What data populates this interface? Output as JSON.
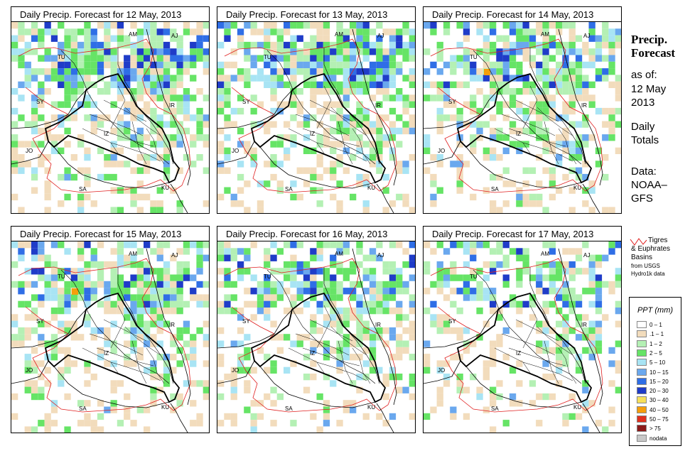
{
  "panels": [
    {
      "title": "Daily Precip. Forecast for  12 May, 2013",
      "seed": 12,
      "density": 0.55
    },
    {
      "title": "Daily Precip. Forecast for  13 May, 2013",
      "seed": 13,
      "density": 0.5
    },
    {
      "title": "Daily Precip. Forecast for  14 May, 2013",
      "seed": 14,
      "density": 0.42
    },
    {
      "title": "Daily Precip. Forecast for  15 May, 2013",
      "seed": 15,
      "density": 0.38
    },
    {
      "title": "Daily Precip. Forecast for  16 May, 2013",
      "seed": 16,
      "density": 0.36
    },
    {
      "title": "Daily Precip. Forecast for  17 May, 2013",
      "seed": 17,
      "density": 0.26
    }
  ],
  "map_labels": [
    "AM",
    "AJ",
    "TU",
    "SY",
    "IR",
    "JO",
    "SA",
    "KU",
    "IZ"
  ],
  "sidebar": {
    "title_line1": "Precip.",
    "title_line2": "Forecast",
    "as_of": "as of:",
    "date_line1": "12 May",
    "date_line2": "2013",
    "daily_line1": "Daily",
    "daily_line2": "Totals",
    "data_line1": "Data:",
    "data_line2": "NOAA–",
    "data_line3": "GFS"
  },
  "basin_legend": {
    "line1": "Tigres",
    "line2": "& Euphrates",
    "line3": "Basins",
    "line4": "from USGS",
    "line5": "Hydro1k data",
    "color": "#e02020"
  },
  "ppt_legend": {
    "title": "PPT (mm)",
    "items": [
      {
        "label": "0 – 1",
        "color": "#ffffff"
      },
      {
        "label": ".1 – 1",
        "color": "#f2dcbc"
      },
      {
        "label": "1 – 2",
        "color": "#b4f0b4"
      },
      {
        "label": "2 – 5",
        "color": "#66e466"
      },
      {
        "label": "5 – 10",
        "color": "#a8e4f4"
      },
      {
        "label": "10 – 15",
        "color": "#6aa8ee"
      },
      {
        "label": "15 – 20",
        "color": "#2f6ee6"
      },
      {
        "label": "20 – 30",
        "color": "#1f3cc8"
      },
      {
        "label": "30 – 40",
        "color": "#f7e05a"
      },
      {
        "label": "40 – 50",
        "color": "#f59e0b"
      },
      {
        "label": "50 – 75",
        "color": "#e0301e"
      },
      {
        "label": "> 75",
        "color": "#8b1a1a"
      },
      {
        "label": "nodata",
        "color": "#c8c8c8"
      }
    ]
  }
}
